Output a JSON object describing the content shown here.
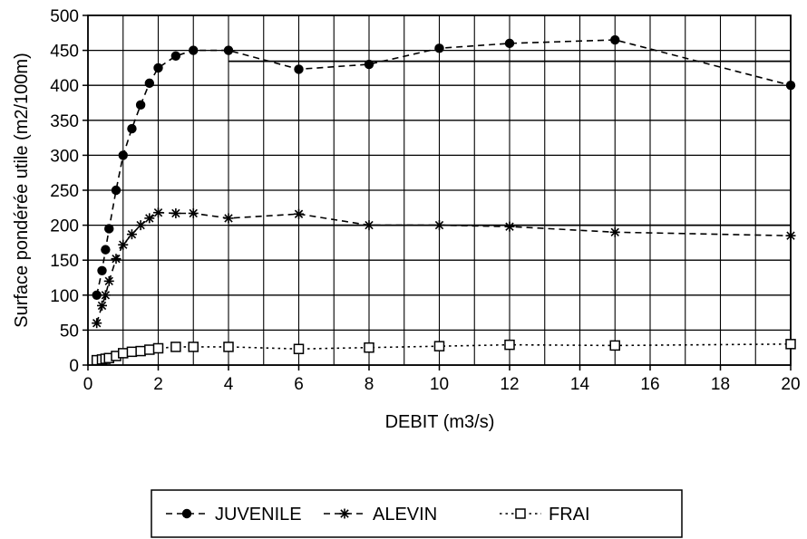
{
  "chart_data": {
    "type": "line",
    "xlabel": "DEBIT (m3/s)",
    "ylabel": "Surface pondérée utile (m2/100m)",
    "xlim": [
      0,
      20
    ],
    "ylim": [
      0,
      500
    ],
    "x_ticks": [
      0,
      2,
      4,
      6,
      8,
      10,
      12,
      14,
      16,
      18,
      20
    ],
    "y_ticks": [
      0,
      50,
      100,
      150,
      200,
      250,
      300,
      350,
      400,
      450,
      500
    ],
    "x_gridlines": [
      0,
      1,
      2,
      3,
      4,
      5,
      6,
      7,
      8,
      9,
      10,
      11,
      12,
      13,
      14,
      15,
      16,
      17,
      18,
      19,
      20
    ],
    "grid": true,
    "legend_position": "bottom",
    "series": [
      {
        "name": "JUVENILE",
        "marker": "filled-circle",
        "line_style": "dashed",
        "x": [
          0.25,
          0.4,
          0.5,
          0.6,
          0.8,
          1.0,
          1.25,
          1.5,
          1.75,
          2.0,
          2.5,
          3.0,
          4.0,
          6.0,
          8.0,
          10.0,
          12.0,
          15.0,
          20.0
        ],
        "y": [
          100,
          135,
          165,
          195,
          250,
          300,
          338,
          372,
          403,
          425,
          442,
          450,
          450,
          423,
          430,
          453,
          460,
          465,
          400
        ]
      },
      {
        "name": "ALEVIN",
        "marker": "asterisk",
        "line_style": "dashed",
        "x": [
          0.25,
          0.4,
          0.5,
          0.6,
          0.8,
          1.0,
          1.25,
          1.5,
          1.75,
          2.0,
          2.5,
          3.0,
          4.0,
          6.0,
          8.0,
          10.0,
          12.0,
          15.0,
          20.0
        ],
        "y": [
          60,
          85,
          100,
          120,
          152,
          172,
          187,
          200,
          210,
          218,
          217,
          217,
          210,
          216,
          200,
          200,
          198,
          190,
          185
        ]
      },
      {
        "name": "FRAI",
        "marker": "open-square",
        "line_style": "dotted",
        "x": [
          0.25,
          0.4,
          0.5,
          0.6,
          0.8,
          1.0,
          1.25,
          1.5,
          1.75,
          2.0,
          2.5,
          3.0,
          4.0,
          6.0,
          8.0,
          10.0,
          12.0,
          15.0,
          20.0
        ],
        "y": [
          7,
          8,
          9,
          10,
          13,
          17,
          19,
          20,
          22,
          24,
          26,
          26,
          26,
          23,
          25,
          27,
          29,
          28,
          30
        ]
      }
    ],
    "reference_lines": [
      450,
      200
    ]
  }
}
